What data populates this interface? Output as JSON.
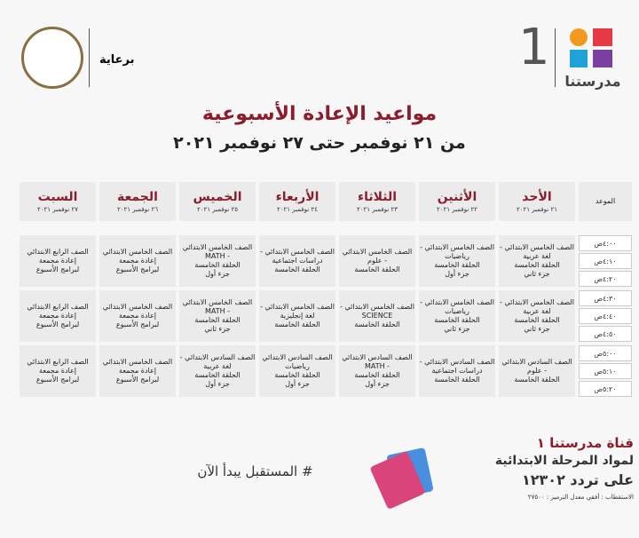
{
  "header": {
    "sponsor": "برعاية",
    "brand_number": "1",
    "brand_name": "مدرستنا"
  },
  "title": "مواعيد الإعادة الأسبوعية",
  "subtitle": "من ٢١ نوفمبر حتى ٢٧ نوفمبر ٢٠٢١",
  "table": {
    "time_header": "الموعد",
    "days": [
      {
        "name": "الأحد",
        "date": "٢١ نوفمبر ٢٠٢١"
      },
      {
        "name": "الأثنين",
        "date": "٢٢ نوفمبر ٢٠٢١"
      },
      {
        "name": "الثلاثاء",
        "date": "٢٣ نوفمبر ٢٠٢١"
      },
      {
        "name": "الأربعاء",
        "date": "٢٤ نوفمبر ٢٠٢١"
      },
      {
        "name": "الخميس",
        "date": "٢٥ نوفمبر ٢٠٢١"
      },
      {
        "name": "الجمعة",
        "date": "٢٦ نوفمبر ٢٠٢١"
      },
      {
        "name": "السبت",
        "date": "٢٧ نوفمبر ٢٠٢١"
      }
    ],
    "times": [
      "٤:٠٠ص",
      "٤:١٠ص",
      "٤:٢٠ص",
      "٤:٣٠ص",
      "٤:٤٠ص",
      "٤:٥٠ص",
      "٥:٠٠ص",
      "٥:١٠ص",
      "٥:٢٠ص"
    ],
    "blocks": [
      [
        [
          "الصف الخامس الابتدائي -",
          "لغة عربية",
          "الحلقة الخامسة",
          "جزء ثاني"
        ],
        [
          "الصف الخامس الابتدائي -",
          "رياضيات",
          "الحلقة الخامسة",
          "جزء أول"
        ],
        [
          "الصف الخامس الابتدائي",
          "- علوم",
          "الحلقة الخامسة"
        ],
        [
          "الصف الخامس الابتدائي -",
          "دراسات اجتماعية",
          "الحلقة الخامسة"
        ],
        [
          "الصف الخامس الابتدائي",
          "- MATH",
          "الحلقة الخامسة",
          "جزء أول"
        ],
        [
          "الصف الخامس الابتدائي",
          "إعادة مجمعة",
          "لبرامج الأسبوع"
        ],
        [
          "الصف الرابع الابتدائي",
          "إعادة مجمعة",
          "لبرامج الأسبوع"
        ]
      ],
      [
        [
          "الصف الخامس الابتدائي -",
          "لغة عربية",
          "الحلقة الخامسة",
          "جزء ثاني"
        ],
        [
          "الصف الخامس الابتدائي -",
          "رياضيات",
          "الحلقة الخامسة",
          "جزء ثاني"
        ],
        [
          "الصف الخامس الابتدائي -",
          "SCIENCE",
          "الحلقة الخامسة"
        ],
        [
          "الصف الخامس الابتدائي -",
          "لغة إنجليزية",
          "الحلقة الخامسة"
        ],
        [
          "الصف الخامس الابتدائي",
          "- MATH",
          "الحلقة الخامسة",
          "جزء ثاني"
        ],
        [
          "الصف الخامس الابتدائي",
          "إعادة مجمعة",
          "لبرامج الأسبوع"
        ],
        [
          "الصف الرابع الابتدائي",
          "إعادة مجمعة",
          "لبرامج الأسبوع"
        ]
      ],
      [
        [
          "الصف السادس الابتدائي",
          "- علوم",
          "الحلقة الخامسة"
        ],
        [
          "الصف السادس الابتدائي -",
          "دراسات اجتماعية",
          "الحلقة الخامسة"
        ],
        [
          "الصف السادس الابتدائي",
          "- MATH",
          "الحلقة الخامسة",
          "جزء أول"
        ],
        [
          "الصف السادس الابتدائي",
          "رياضيات",
          "الحلقة الخامسة",
          "جزء أول"
        ],
        [
          "الصف السادس الابتدائي -",
          "لغة عربية",
          "الحلقة الخامسة",
          "جزء أول"
        ],
        [
          "الصف الخامس الابتدائي",
          "إعادة مجمعة",
          "لبرامج الأسبوع"
        ],
        [
          "الصف الرابع الابتدائي",
          "إعادة مجمعة",
          "لبرامج الأسبوع"
        ]
      ]
    ]
  },
  "footer": {
    "hashtag": "# المستقبل يبدأ الآن",
    "channel": "قناة مدرستنا ١",
    "subject": "لمواد المرحلة الابتدائية",
    "frequency": "على تردد ١٢٣٠٢",
    "tech": "الاستقطاب : أفقي معدل الترميز : ٢٧٥٠٠"
  }
}
